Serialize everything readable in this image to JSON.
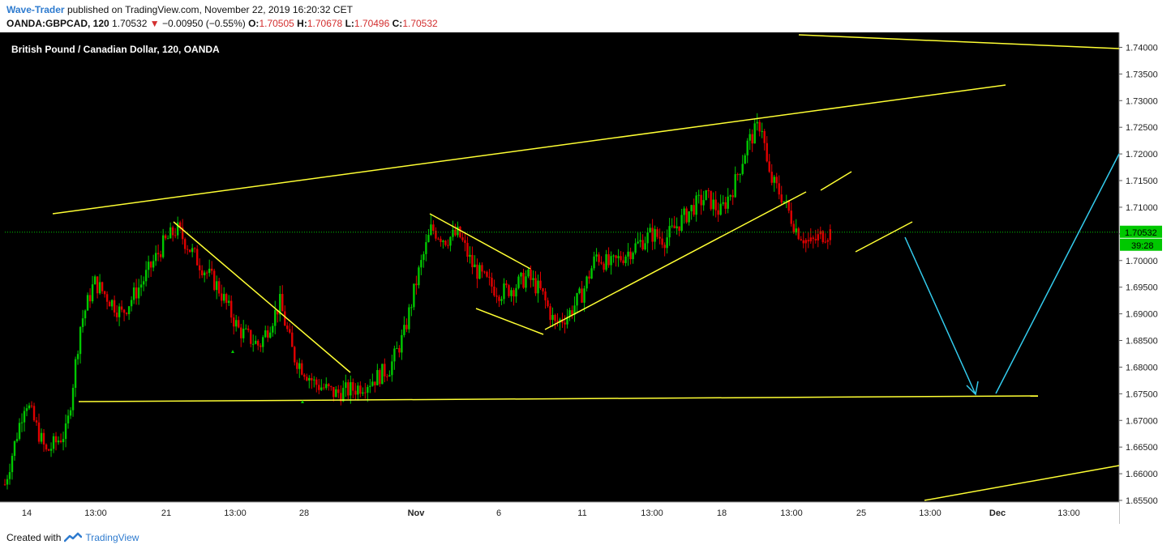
{
  "header": {
    "author": "Wave-Trader",
    "published": "published on TradingView.com, November 22, 2019 16:20:32 CET",
    "symbol": "OANDA:GBPCAD, 120",
    "last": "1.70532",
    "change": "−0.00950 (−0.55%)",
    "open_label": "O:",
    "open": "1.70505",
    "high_label": "H:",
    "high": "1.70678",
    "low_label": "L:",
    "low": "1.70496",
    "close_label": "C:",
    "close": "1.70532"
  },
  "footer": {
    "created_with": "Created with",
    "brand": "TradingView"
  },
  "colors": {
    "background": "#000000",
    "up": "#00c800",
    "down": "#e00000",
    "trendline": "#ffff33",
    "arrow": "#33ccee",
    "price_line": "#00c800"
  },
  "chart_data": {
    "type": "candlestick",
    "title": "British Pound / Canadian Dollar, 120, OANDA",
    "ylim": [
      1.655,
      1.7425
    ],
    "y_ticks": [
      "1.74000",
      "1.73500",
      "1.73000",
      "1.72500",
      "1.72000",
      "1.71500",
      "1.71000",
      "1.70500",
      "1.70000",
      "1.69500",
      "1.69000",
      "1.68500",
      "1.68000",
      "1.67500",
      "1.67000",
      "1.66500",
      "1.66000",
      "1.65500"
    ],
    "x_ticks": [
      "14",
      "13:00",
      "21",
      "13:00",
      "28",
      "Nov",
      "6",
      "11",
      "13:00",
      "18",
      "13:00",
      "25",
      "13:00",
      "Dec",
      "13:00"
    ],
    "last_price": "1.70532",
    "countdown": "39:28",
    "price_path": [
      [
        0,
        1.658
      ],
      [
        0.03,
        1.674
      ],
      [
        0.06,
        1.664
      ],
      [
        0.09,
        1.668
      ],
      [
        0.11,
        1.688
      ],
      [
        0.13,
        1.696
      ],
      [
        0.17,
        1.69
      ],
      [
        0.2,
        1.696
      ],
      [
        0.23,
        1.703
      ],
      [
        0.25,
        1.706
      ],
      [
        0.28,
        1.7
      ],
      [
        0.31,
        1.695
      ],
      [
        0.34,
        1.687
      ],
      [
        0.37,
        1.684
      ],
      [
        0.4,
        1.692
      ],
      [
        0.42,
        1.682
      ],
      [
        0.45,
        1.677
      ],
      [
        0.48,
        1.675
      ],
      [
        0.51,
        1.676
      ],
      [
        0.54,
        1.678
      ],
      [
        0.56,
        1.68
      ],
      [
        0.58,
        1.686
      ],
      [
        0.6,
        1.697
      ],
      [
        0.62,
        1.706
      ],
      [
        0.64,
        1.704
      ],
      [
        0.66,
        1.705
      ],
      [
        0.68,
        1.699
      ],
      [
        0.7,
        1.696
      ],
      [
        0.72,
        1.694
      ],
      [
        0.74,
        1.695
      ],
      [
        0.76,
        1.697
      ],
      [
        0.78,
        1.694
      ],
      [
        0.8,
        1.688
      ],
      [
        0.82,
        1.69
      ],
      [
        0.84,
        1.694
      ],
      [
        0.86,
        1.701
      ],
      [
        0.88,
        1.699
      ],
      [
        0.9,
        1.701
      ],
      [
        0.92,
        1.703
      ],
      [
        0.94,
        1.705
      ],
      [
        0.96,
        1.704
      ],
      [
        0.98,
        1.707
      ],
      [
        1.0,
        1.71
      ],
      [
        1.02,
        1.712
      ],
      [
        1.04,
        1.709
      ],
      [
        1.06,
        1.714
      ],
      [
        1.08,
        1.722
      ],
      [
        1.1,
        1.726
      ],
      [
        1.11,
        1.716
      ],
      [
        1.13,
        1.712
      ],
      [
        1.15,
        1.706
      ],
      [
        1.17,
        1.703
      ],
      [
        1.19,
        1.705
      ],
      [
        1.2,
        1.7053
      ]
    ],
    "annotations": [
      "rising channel",
      "horizontal support 1.675",
      "projected move down then up"
    ]
  }
}
